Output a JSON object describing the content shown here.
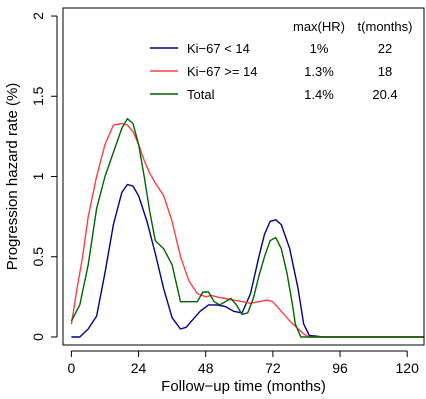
{
  "chart_data": {
    "type": "line",
    "xlabel": "Follow−up time (months)",
    "ylabel": "Progression hazard rate (%)",
    "xlim": [
      -3,
      126
    ],
    "ylim": [
      -0.05,
      2.05
    ],
    "xticks": [
      0,
      24,
      48,
      72,
      96,
      120
    ],
    "xtick_labels": [
      "0",
      "24",
      "48",
      "72",
      "96",
      "120"
    ],
    "yticks": [
      0,
      0.5,
      1,
      1.5,
      2
    ],
    "ytick_labels": [
      "0",
      "0.5",
      "1",
      "1.5",
      "2"
    ],
    "legend_position": "top-right",
    "legend_headers": {
      "max": "max(HR)",
      "t": "t(months)"
    },
    "series": [
      {
        "name": "Ki−67 < 14",
        "color": "#00008b",
        "max_hr": "1%",
        "t_months": "22",
        "x": [
          0,
          3,
          6,
          9,
          12,
          15,
          18,
          20,
          22,
          24,
          27,
          30,
          33,
          36,
          39,
          41,
          43,
          46,
          49,
          52,
          55,
          58,
          61,
          64,
          67,
          69,
          71,
          73,
          75,
          78,
          81,
          83,
          85,
          90,
          100,
          110,
          120,
          126
        ],
        "y": [
          0,
          0,
          0.05,
          0.13,
          0.4,
          0.7,
          0.9,
          0.95,
          0.94,
          0.88,
          0.72,
          0.52,
          0.3,
          0.12,
          0.05,
          0.06,
          0.1,
          0.16,
          0.2,
          0.2,
          0.19,
          0.16,
          0.15,
          0.27,
          0.5,
          0.64,
          0.72,
          0.73,
          0.7,
          0.55,
          0.3,
          0.08,
          0.01,
          0,
          0,
          0,
          0,
          0
        ]
      },
      {
        "name": "Ki−67 >= 14",
        "color": "#ff4040",
        "max_hr": "1.3%",
        "t_months": "18",
        "x": [
          0,
          2,
          4,
          6,
          9,
          12,
          15,
          18,
          20,
          22,
          24,
          26,
          28,
          30,
          33,
          36,
          39,
          42,
          45,
          48,
          50,
          52,
          55,
          58,
          61,
          64,
          67,
          70,
          72,
          75,
          78,
          81,
          83,
          85,
          90,
          100,
          110,
          120,
          126
        ],
        "y": [
          0.08,
          0.3,
          0.5,
          0.75,
          1,
          1.2,
          1.32,
          1.33,
          1.32,
          1.28,
          1.2,
          1.1,
          1.02,
          0.96,
          0.88,
          0.72,
          0.5,
          0.35,
          0.27,
          0.25,
          0.26,
          0.25,
          0.24,
          0.23,
          0.22,
          0.21,
          0.22,
          0.23,
          0.22,
          0.16,
          0.1,
          0.05,
          0.02,
          0,
          0,
          0,
          0,
          0,
          0
        ]
      },
      {
        "name": "Total",
        "color": "#006400",
        "max_hr": "1.4%",
        "t_months": "20.4",
        "x": [
          0,
          3,
          6,
          9,
          12,
          15,
          18,
          20,
          22,
          24,
          26,
          28,
          30,
          33,
          36,
          39,
          42,
          45,
          47,
          49,
          51,
          53,
          55,
          57,
          59,
          61,
          63,
          65,
          67,
          69,
          71,
          73,
          75,
          77,
          79,
          80,
          82,
          85,
          90,
          100,
          110,
          120,
          126
        ],
        "y": [
          0.1,
          0.2,
          0.45,
          0.8,
          1,
          1.15,
          1.3,
          1.36,
          1.33,
          1.2,
          1.0,
          0.78,
          0.6,
          0.55,
          0.45,
          0.22,
          0.22,
          0.22,
          0.28,
          0.28,
          0.22,
          0.2,
          0.22,
          0.24,
          0.2,
          0.14,
          0.15,
          0.24,
          0.38,
          0.5,
          0.6,
          0.62,
          0.55,
          0.4,
          0.2,
          0.08,
          0,
          0,
          0,
          0,
          0,
          0,
          0
        ]
      }
    ]
  }
}
